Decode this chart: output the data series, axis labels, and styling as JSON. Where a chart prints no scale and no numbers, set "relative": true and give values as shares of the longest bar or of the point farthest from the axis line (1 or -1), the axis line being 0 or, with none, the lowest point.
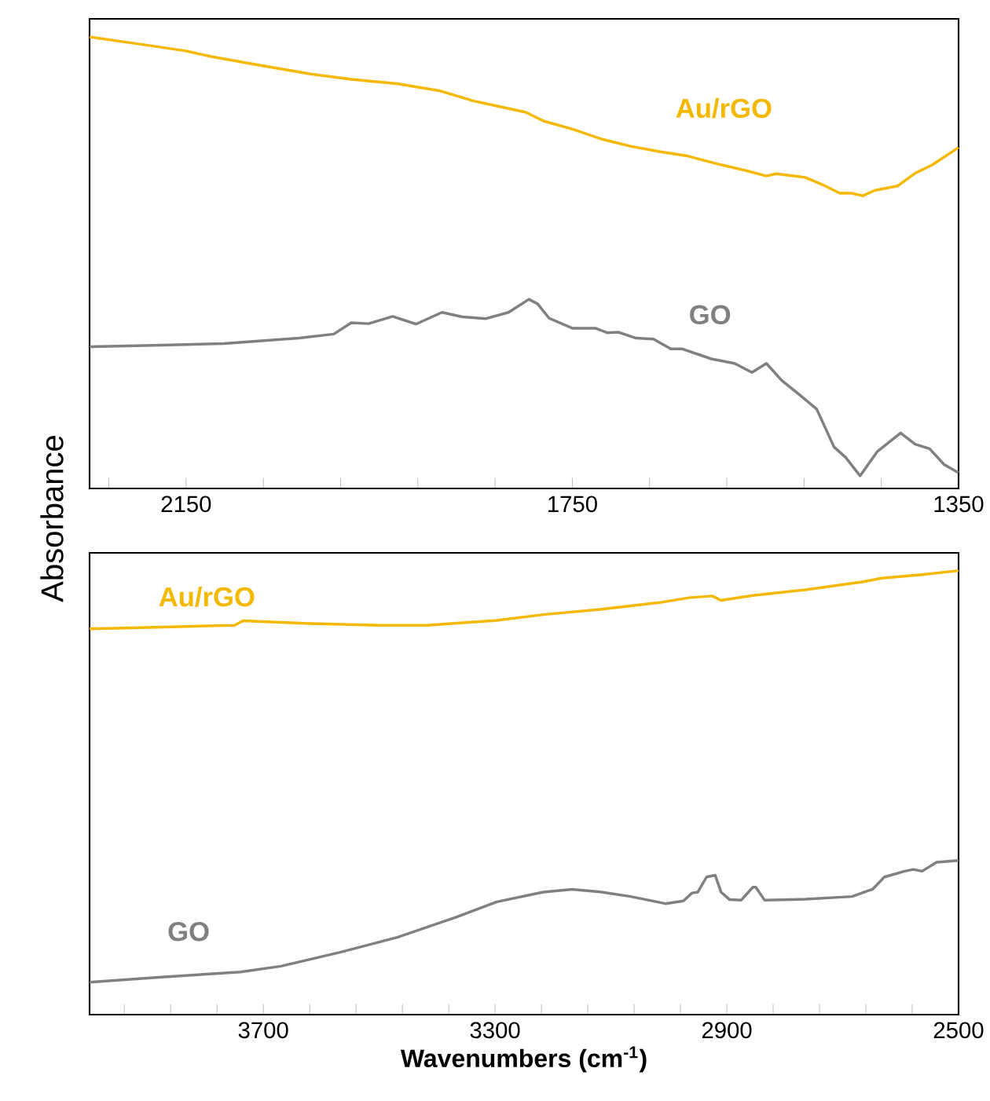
{
  "chart_data": [
    {
      "type": "line",
      "relative": true,
      "ylabel": "Absorbance",
      "tick_labels": "x",
      "xlim": [
        2250,
        1350
      ],
      "xticks": [
        {
          "value": 2230,
          "label": null
        },
        2150,
        {
          "value": 2070,
          "label": null
        },
        {
          "value": 1990,
          "label": null
        },
        {
          "value": 1910,
          "label": null
        },
        {
          "value": 1830,
          "label": null
        },
        1750,
        {
          "value": 1670,
          "label": null
        },
        {
          "value": 1590,
          "label": null
        },
        {
          "value": 1510,
          "label": null
        },
        {
          "value": 1430,
          "label": null
        },
        1350
      ],
      "series": [
        {
          "name": "Au/rGO",
          "color": "#f5b800",
          "x": [
            2250,
            2201,
            2150,
            2123,
            2081,
            2021,
            1979,
            1930,
            1888,
            1852,
            1828,
            1798,
            1780,
            1750,
            1720,
            1690,
            1660,
            1630,
            1600,
            1570,
            1549,
            1539,
            1509,
            1491,
            1473,
            1461,
            1449,
            1437,
            1413,
            1395,
            1377,
            1350
          ],
          "values": [
            1.0,
            0.985,
            0.969,
            0.956,
            0.94,
            0.918,
            0.906,
            0.896,
            0.881,
            0.858,
            0.847,
            0.833,
            0.814,
            0.796,
            0.774,
            0.758,
            0.746,
            0.736,
            0.719,
            0.704,
            0.692,
            0.697,
            0.689,
            0.673,
            0.654,
            0.654,
            0.648,
            0.66,
            0.67,
            0.698,
            0.717,
            0.755
          ]
        },
        {
          "name": "GO",
          "color": "#808080",
          "x": [
            2250,
            2183,
            2111,
            2033,
            1997,
            1979,
            1961,
            1936,
            1912,
            1885,
            1864,
            1840,
            1816,
            1795,
            1786,
            1774,
            1750,
            1726,
            1714,
            1702,
            1684,
            1666,
            1648,
            1636,
            1606,
            1582,
            1564,
            1549,
            1533,
            1515,
            1497,
            1479,
            1467,
            1452,
            1434,
            1410,
            1395,
            1380,
            1365,
            1350
          ],
          "values": [
            0.314,
            0.317,
            0.321,
            0.333,
            0.342,
            0.367,
            0.365,
            0.381,
            0.364,
            0.39,
            0.38,
            0.376,
            0.39,
            0.419,
            0.409,
            0.377,
            0.355,
            0.355,
            0.345,
            0.346,
            0.333,
            0.331,
            0.309,
            0.309,
            0.287,
            0.277,
            0.257,
            0.277,
            0.239,
            0.208,
            0.176,
            0.092,
            0.069,
            0.028,
            0.082,
            0.123,
            0.098,
            0.088,
            0.053,
            0.035
          ]
        }
      ]
    },
    {
      "type": "line",
      "relative": true,
      "xlabel": "Wavenumbers (cm$^{-1}$)",
      "tick_labels": "x",
      "xlim": [
        4000,
        2500
      ],
      "xticks": [
        {
          "value": 3940,
          "label": null
        },
        {
          "value": 3860,
          "label": null
        },
        {
          "value": 3780,
          "label": null
        },
        3700,
        {
          "value": 3620,
          "label": null
        },
        {
          "value": 3540,
          "label": null
        },
        {
          "value": 3460,
          "label": null
        },
        {
          "value": 3380,
          "label": null
        },
        3300,
        {
          "value": 3220,
          "label": null
        },
        {
          "value": 3140,
          "label": null
        },
        {
          "value": 3060,
          "label": null
        },
        {
          "value": 2980,
          "label": null
        },
        2900,
        {
          "value": 2820,
          "label": null
        },
        {
          "value": 2740,
          "label": null
        },
        {
          "value": 2660,
          "label": null
        },
        {
          "value": 2580,
          "label": null
        },
        2500
      ],
      "series": [
        {
          "name": "Au/rGO",
          "color": "#f5b800",
          "x": [
            4000,
            3871,
            3750,
            3735,
            3620,
            3499,
            3418,
            3297,
            3217,
            3116,
            3016,
            2965,
            2925,
            2910,
            2855,
            2764,
            2664,
            2633,
            2563,
            2500
          ],
          "values": [
            0.869,
            0.873,
            0.877,
            0.887,
            0.881,
            0.877,
            0.877,
            0.888,
            0.901,
            0.913,
            0.928,
            0.939,
            0.943,
            0.933,
            0.944,
            0.957,
            0.975,
            0.983,
            0.991,
            1.0
          ]
        },
        {
          "name": "GO",
          "color": "#808080",
          "x": [
            4000,
            3871,
            3740,
            3670,
            3569,
            3469,
            3368,
            3297,
            3217,
            3167,
            3116,
            3066,
            3006,
            2975,
            2960,
            2950,
            2935,
            2920,
            2910,
            2895,
            2875,
            2855,
            2850,
            2835,
            2764,
            2684,
            2648,
            2628,
            2593,
            2578,
            2563,
            2538,
            2500
          ],
          "values": [
            0.073,
            0.085,
            0.096,
            0.109,
            0.14,
            0.174,
            0.219,
            0.254,
            0.276,
            0.282,
            0.276,
            0.266,
            0.25,
            0.256,
            0.274,
            0.276,
            0.31,
            0.314,
            0.276,
            0.259,
            0.258,
            0.287,
            0.287,
            0.258,
            0.26,
            0.266,
            0.283,
            0.31,
            0.323,
            0.327,
            0.323,
            0.343,
            0.347
          ]
        }
      ]
    }
  ]
}
